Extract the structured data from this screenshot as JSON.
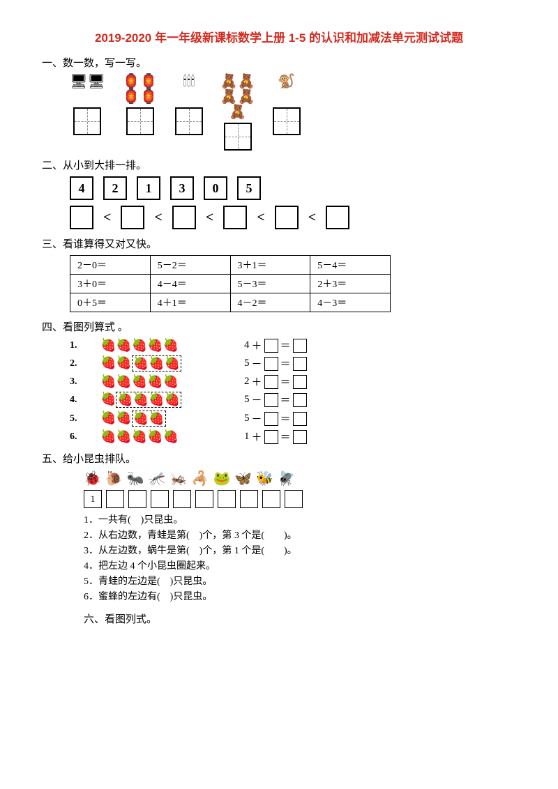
{
  "title": {
    "text": "2019-2020 年一年级新课标数学上册 1-5 的认识和加减法单元测试试题",
    "color": "#d42a1f"
  },
  "sections": {
    "s1": "一、数一数，写一写。",
    "s2": "二、从小到大排一排。",
    "s3": "三、看谁算得又对又快。",
    "s4": "四、看图列算式 。",
    "s5": "五、给小昆虫排队。",
    "s6": "六、看图列式。"
  },
  "q1": {
    "groups": [
      {
        "icon": "🖥",
        "count": 2
      },
      {
        "icon": "🏮",
        "count": 4
      },
      {
        "icon": "🕯",
        "count": 3
      },
      {
        "icon": "🧸",
        "count": 5
      },
      {
        "icon": "🐒",
        "count": 1
      }
    ]
  },
  "q2": {
    "nums": [
      "4",
      "2",
      "1",
      "3",
      "0",
      "5"
    ],
    "blanks": 6,
    "sep": "<"
  },
  "q3": {
    "rows": [
      [
        "2－0＝",
        "5－2＝",
        "3＋1＝",
        "5－4＝"
      ],
      [
        "3＋0＝",
        "4－4＝",
        "5－3＝",
        "2＋3＝"
      ],
      [
        "0＋5＝",
        "4＋1＝",
        "4－2＝",
        "4－3＝"
      ]
    ]
  },
  "q4": {
    "items": [
      {
        "n": "1.",
        "groups": [
          4,
          1
        ],
        "eq_left": "4",
        "op": "＋"
      },
      {
        "n": "2.",
        "groups": [
          2,
          3
        ],
        "dashed": 1,
        "eq_left": "5",
        "op": "－"
      },
      {
        "n": "3.",
        "groups": [
          2,
          3
        ],
        "eq_left": "2",
        "op": "＋"
      },
      {
        "n": "4.",
        "groups": [
          1,
          4
        ],
        "dashed": 1,
        "eq_left": "5",
        "op": "－"
      },
      {
        "n": "5.",
        "groups": [
          2,
          2
        ],
        "dashed": 1,
        "eq_left": "5",
        "op": "－"
      },
      {
        "n": "6.",
        "groups": [
          1,
          4
        ],
        "eq_left": "1",
        "op": "＋"
      }
    ],
    "berry_glyph": "🍓",
    "eq_eq": "＝"
  },
  "q5": {
    "insects": [
      "🐞",
      "🐌",
      "🐜",
      "🦟",
      "🦗",
      "🦂",
      "🐸",
      "🦋",
      "🐝",
      "🪰"
    ],
    "first_box": "1",
    "blank_boxes": 9,
    "questions": {
      "l1": "1．一共有(　)只昆虫。",
      "l2": "2．从右边数，青蛙是第(　)个，第 3 个是(　　)。",
      "l3": "3．从左边数，蜗牛是第(　)个，第 1 个是(　　)。",
      "l4": "4．把左边 4 个小昆虫圈起来。",
      "l5": "5．青蛙的左边是(　)只昆虫。",
      "l6": "6．蜜蜂的左边有(　)只昆虫。"
    }
  }
}
